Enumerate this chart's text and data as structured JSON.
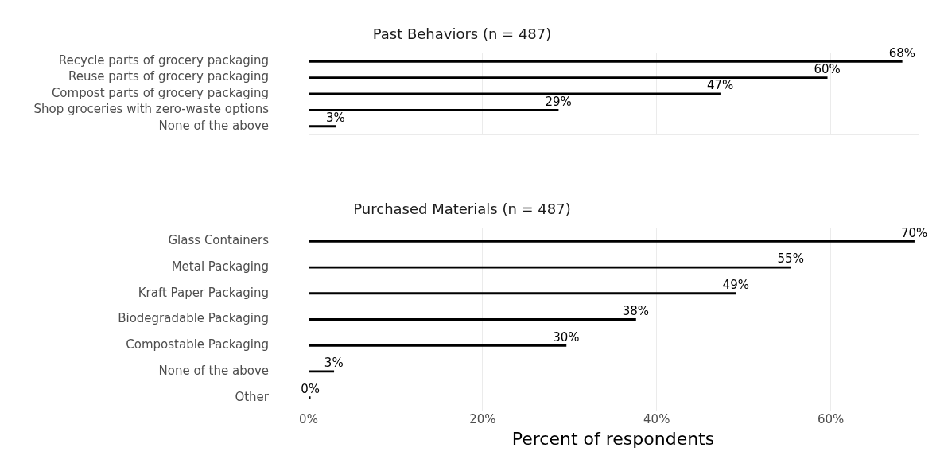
{
  "chart_data": [
    {
      "type": "bar",
      "orientation": "horizontal",
      "title": "Past Behaviors (n = 487)",
      "categories": [
        "Recycle parts of grocery packaging",
        "Reuse parts of grocery packaging",
        "Compost parts of grocery packaging",
        "Shop groceries with zero-waste options",
        "None of the above"
      ],
      "values": [
        68.2,
        59.6,
        47.3,
        28.7,
        3.1
      ],
      "value_labels": [
        "68%",
        "60%",
        "47%",
        "29%",
        "3%"
      ],
      "color": "#000000",
      "xlim": [
        0,
        70
      ],
      "xticks": [
        {
          "value": 0,
          "label": null
        },
        {
          "value": 20,
          "label": null
        },
        {
          "value": 40,
          "label": null
        },
        {
          "value": 60,
          "label": null
        }
      ],
      "grid": "x",
      "tick_labels": "y"
    },
    {
      "type": "bar",
      "orientation": "horizontal",
      "title": "Purchased Materials (n = 487)",
      "xlabel": "Percent of respondents",
      "categories": [
        "Glass Containers",
        "Metal Packaging",
        "Kraft Paper Packaging",
        "Biodegradable Packaging",
        "Compostable Packaging",
        "None of the above",
        "Other"
      ],
      "values": [
        69.6,
        55.4,
        49.1,
        37.6,
        29.6,
        2.9,
        0.2
      ],
      "value_labels": [
        "70%",
        "55%",
        "49%",
        "38%",
        "30%",
        "3%",
        "0%"
      ],
      "color": "#000000",
      "xlim": [
        0,
        70
      ],
      "xticks": [
        {
          "value": 0,
          "label": "0%"
        },
        {
          "value": 20,
          "label": "20%"
        },
        {
          "value": 40,
          "label": "40%"
        },
        {
          "value": 60,
          "label": "60%"
        }
      ],
      "grid": "x"
    }
  ]
}
